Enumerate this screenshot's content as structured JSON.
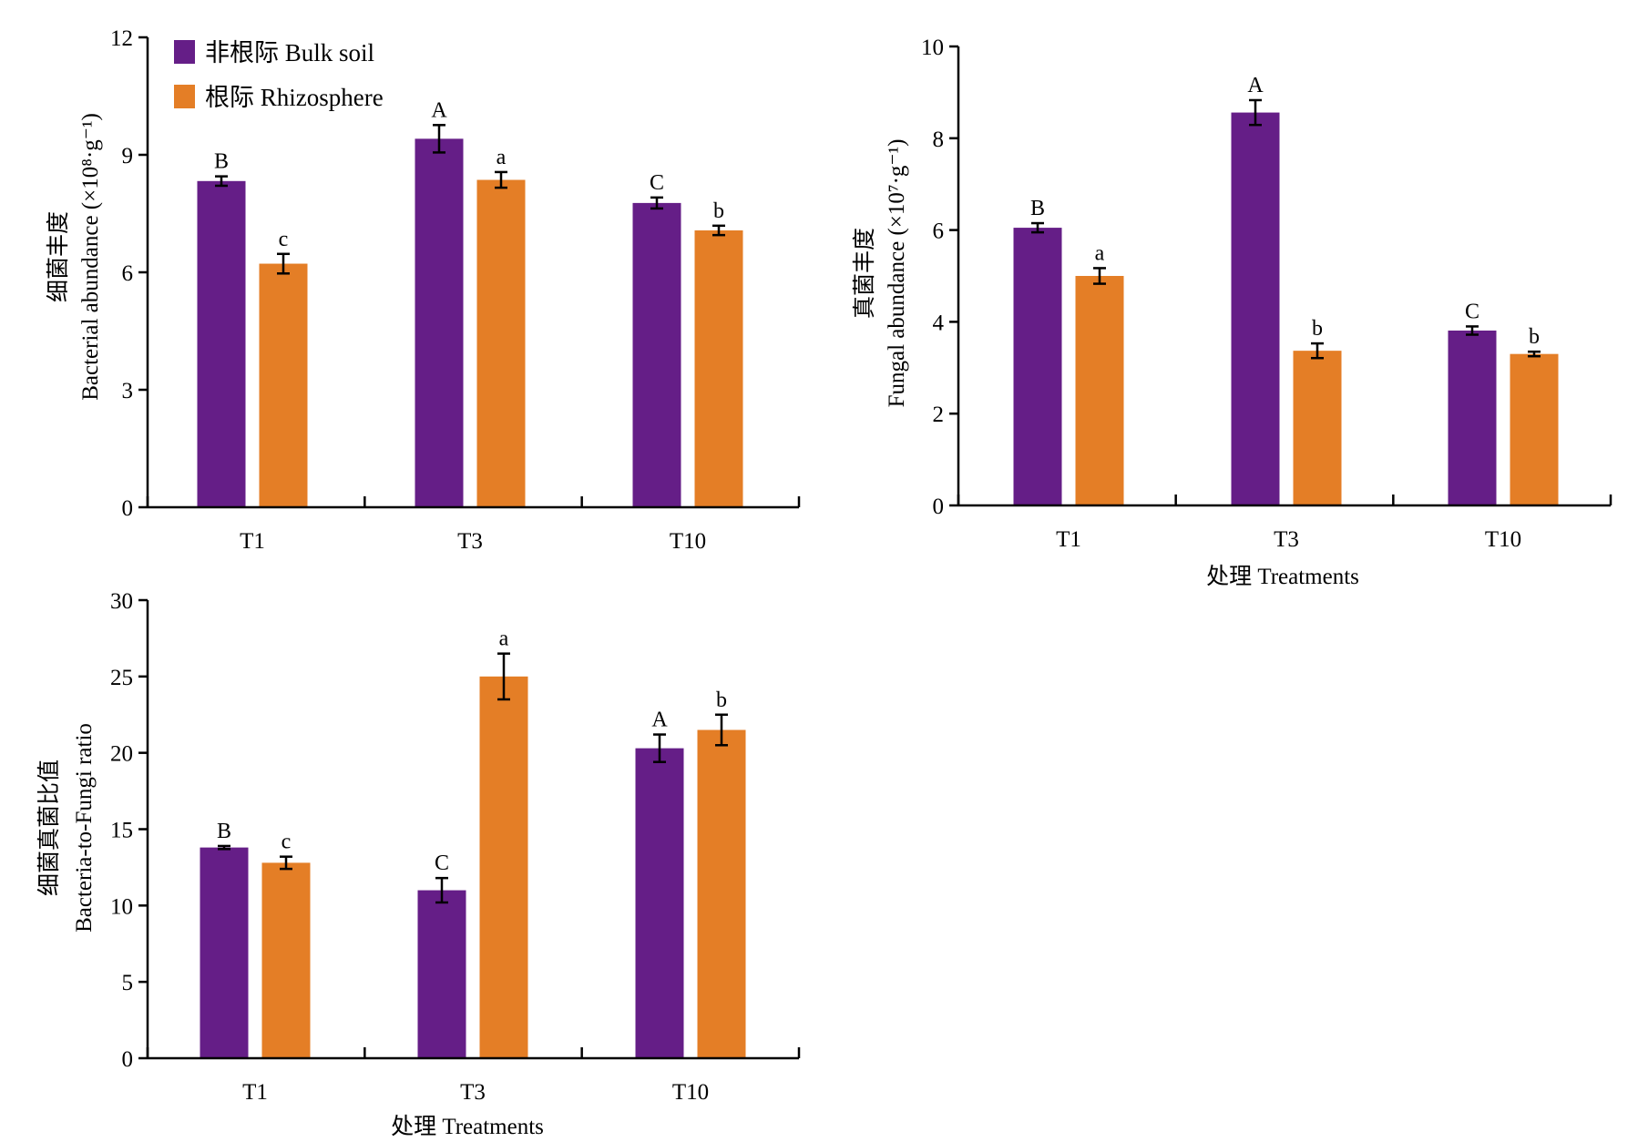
{
  "colors": {
    "bulk": "#651E87",
    "rhizosphere": "#E47E26",
    "axis": "#000000"
  },
  "legend": [
    {
      "key": "bulk",
      "label": "非根际 Bulk soil"
    },
    {
      "key": "rhizosphere",
      "label": "根际 Rhizosphere"
    }
  ],
  "chart_data": [
    {
      "type": "bar",
      "categories": [
        "T1",
        "T3",
        "T10"
      ],
      "series": [
        {
          "name": "非根际 Bulk soil",
          "values": [
            8.33,
            9.41,
            7.77
          ],
          "errors": [
            0.12,
            0.35,
            0.14
          ],
          "letters": [
            "B",
            "A",
            "C"
          ]
        },
        {
          "name": "根际 Rhizosphere",
          "values": [
            6.22,
            8.36,
            7.07
          ],
          "errors": [
            0.25,
            0.2,
            0.12
          ],
          "letters": [
            "c",
            "a",
            "b"
          ]
        }
      ],
      "ylabel_cn": "细菌丰度",
      "ylabel_en": "Bacterial abundance (×10⁸·g⁻¹)",
      "xlabel": "",
      "ylim": [
        0,
        12
      ],
      "yticks": [
        0,
        3,
        6,
        9,
        12
      ]
    },
    {
      "type": "bar",
      "categories": [
        "T1",
        "T3",
        "T10"
      ],
      "series": [
        {
          "name": "非根际 Bulk soil",
          "values": [
            6.05,
            8.56,
            3.81
          ],
          "errors": [
            0.1,
            0.27,
            0.09
          ],
          "letters": [
            "B",
            "A",
            "C"
          ]
        },
        {
          "name": "根际 Rhizosphere",
          "values": [
            5.0,
            3.37,
            3.3
          ],
          "errors": [
            0.17,
            0.16,
            0.05
          ],
          "letters": [
            "a",
            "b",
            "b"
          ]
        }
      ],
      "ylabel_cn": "真菌丰度",
      "ylabel_en": "Fungal abundance (×10⁷·g⁻¹)",
      "xlabel": "处理 Treatments",
      "ylim": [
        0,
        10
      ],
      "yticks": [
        0,
        2,
        4,
        6,
        8,
        10
      ]
    },
    {
      "type": "bar",
      "categories": [
        "T1",
        "T3",
        "T10"
      ],
      "series": [
        {
          "name": "非根际 Bulk soil",
          "values": [
            13.8,
            11.0,
            20.3
          ],
          "errors": [
            0.1,
            0.8,
            0.9
          ],
          "letters": [
            "B",
            "C",
            "A"
          ]
        },
        {
          "name": "根际 Rhizosphere",
          "values": [
            12.8,
            25.0,
            21.5
          ],
          "errors": [
            0.4,
            1.5,
            1.0
          ],
          "letters": [
            "c",
            "a",
            "b"
          ]
        }
      ],
      "ylabel_cn": "细菌真菌比值",
      "ylabel_en": "Bacteria-to-Fungi ratio",
      "xlabel": "处理 Treatments",
      "ylim": [
        0,
        30
      ],
      "yticks": [
        0,
        5,
        10,
        15,
        20,
        25,
        30
      ]
    }
  ]
}
